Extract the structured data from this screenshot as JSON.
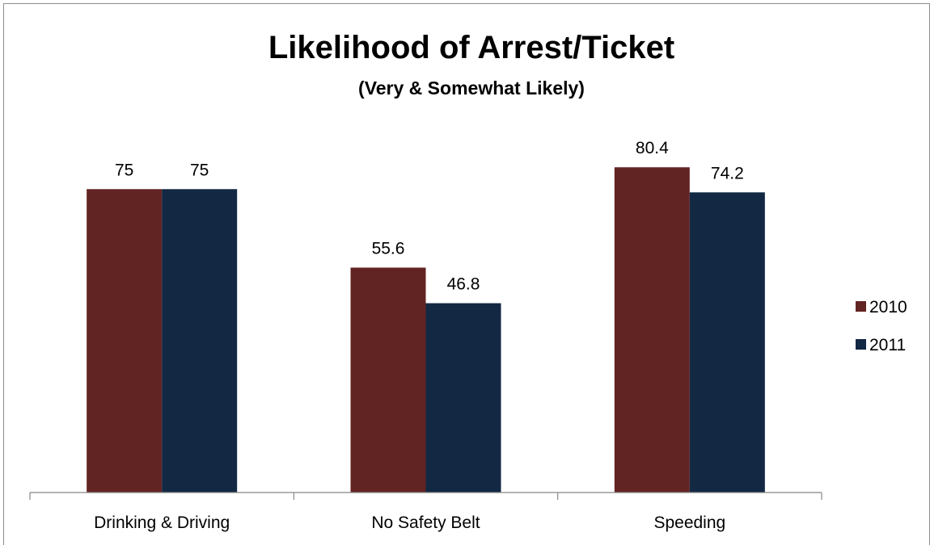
{
  "chart_data": {
    "type": "bar",
    "title": "Likelihood of Arrest/Ticket",
    "subtitle": "(Very & Somewhat Likely)",
    "xlabel": "",
    "ylabel": "",
    "categories": [
      "Drinking & Driving",
      "No Safety Belt",
      "Speeding"
    ],
    "series": [
      {
        "name": "2010",
        "values": [
          75,
          55.6,
          80.4
        ],
        "color": "#622423"
      },
      {
        "name": "2011",
        "values": [
          75,
          46.8,
          74.2
        ],
        "color": "#122843"
      }
    ],
    "ylim": [
      0,
      100
    ],
    "grid": false,
    "legend": "right",
    "data_labels": true
  }
}
